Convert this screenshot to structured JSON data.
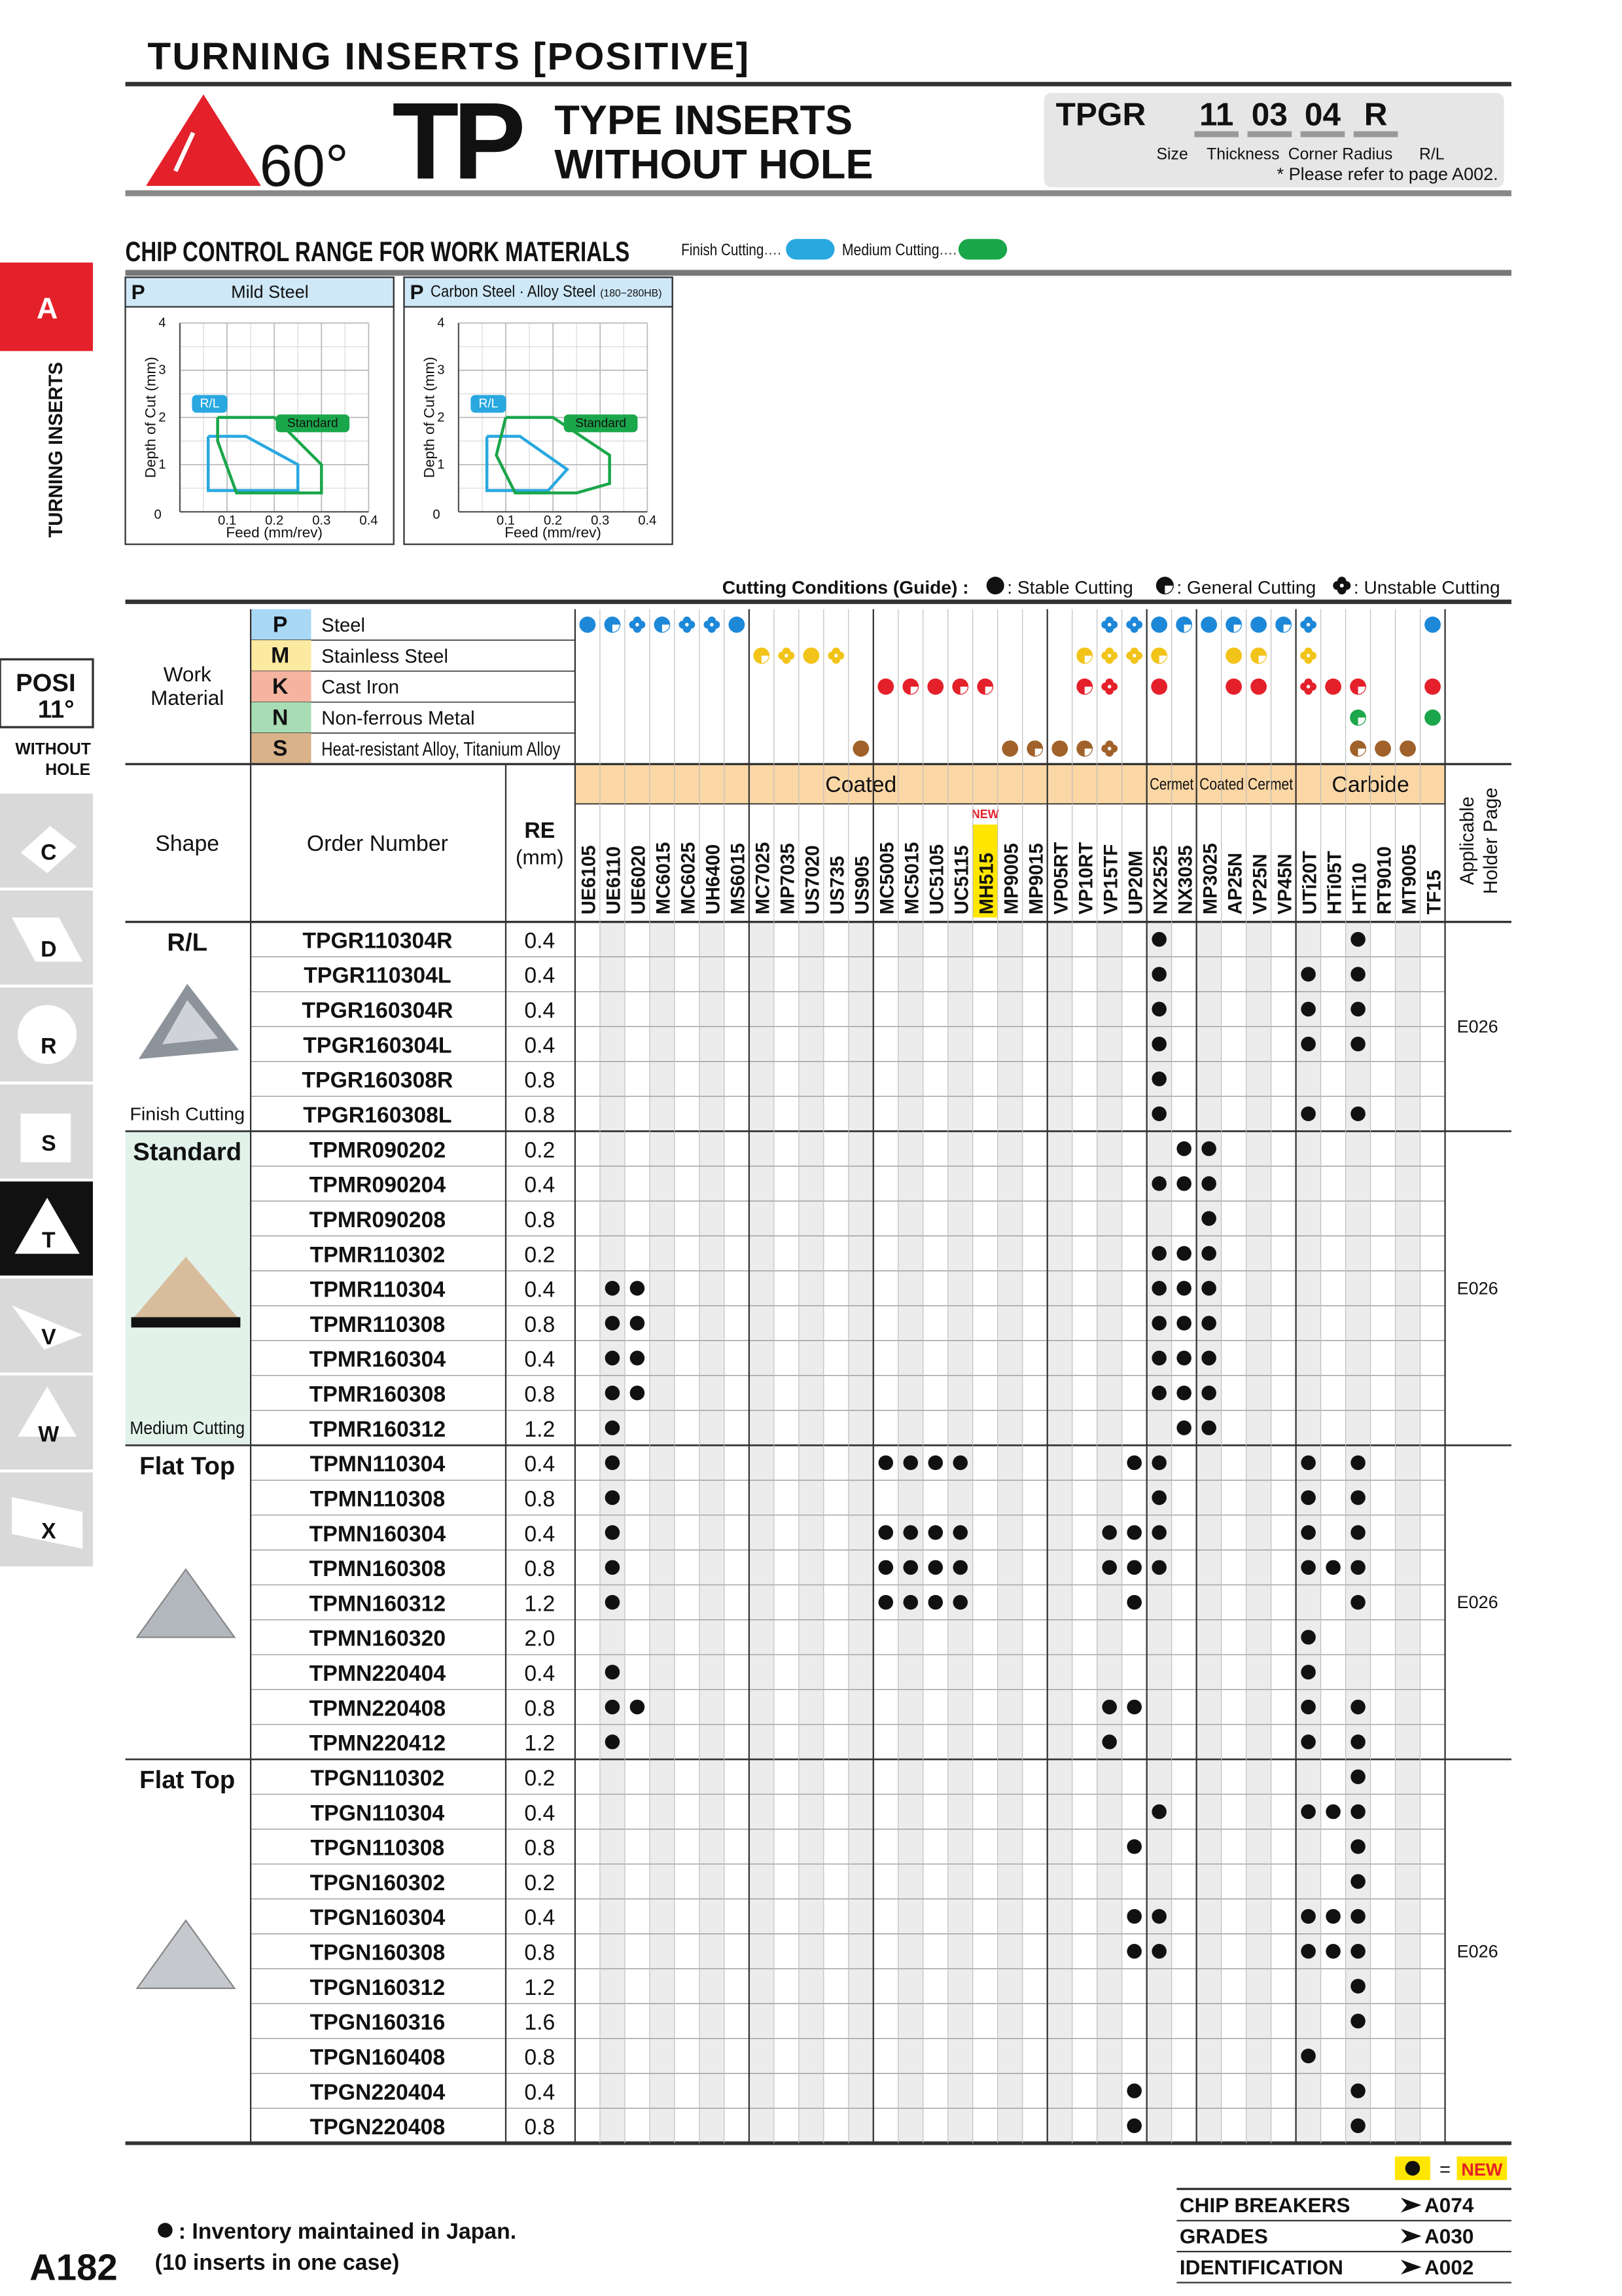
{
  "header": {
    "section": "TURNING INSERTS [POSITIVE]",
    "angle": "60°",
    "type_code": "TP",
    "type_line1": "TYPE INSERTS",
    "type_line2": "WITHOUT HOLE",
    "designation": {
      "prefix": "TPGR",
      "size": "11",
      "thickness": "03",
      "corner_radius": "04",
      "hand": "R",
      "labels": [
        "Size",
        "Thickness",
        "Corner Radius",
        "R/L"
      ],
      "note": "* Please refer to page A002."
    }
  },
  "sidebar": {
    "tab": "A",
    "section": "TURNING INSERTS",
    "posi": "POSI",
    "angle": "11°",
    "without": "WITHOUT",
    "hole": "HOLE",
    "shapes": [
      "C",
      "D",
      "R",
      "S",
      "T",
      "V",
      "W",
      "X"
    ],
    "active_shape": "T"
  },
  "chip_control": {
    "title": "CHIP CONTROL RANGE FOR WORK MATERIALS",
    "legend": [
      {
        "label": "Finish Cutting",
        "color": "#29a8e0"
      },
      {
        "label": "Medium Cutting",
        "color": "#1aa64a"
      }
    ],
    "charts": [
      {
        "code": "P",
        "material": "Mild Steel",
        "ylabel": "Depth of Cut (mm)",
        "xlabel": "Feed (mm/rev)",
        "xlim": [
          0,
          0.4
        ],
        "ylim": [
          0,
          4
        ],
        "xticks": [
          0.1,
          0.2,
          0.3,
          0.4
        ],
        "yticks": [
          0,
          1,
          2,
          3,
          4
        ],
        "regions": [
          {
            "label": "R/L",
            "color": "#29a8e0",
            "feed": [
              0.06,
              0.14,
              0.25,
              0.25,
              0.06,
              0.06
            ],
            "depth": [
              1.6,
              1.6,
              1.0,
              0.45,
              0.45,
              1.6
            ]
          },
          {
            "label": "Standard",
            "color": "#1aa64a",
            "feed": [
              0.08,
              0.2,
              0.3,
              0.3,
              0.12,
              0.08,
              0.08
            ],
            "depth": [
              2.0,
              2.0,
              1.0,
              0.4,
              0.4,
              1.5,
              2.0
            ]
          }
        ]
      },
      {
        "code": "P",
        "material": "Carbon Steel · Alloy Steel",
        "note": "(180−280HB)",
        "ylabel": "Depth of Cut (mm)",
        "xlabel": "Feed (mm/rev)",
        "xlim": [
          0,
          0.4
        ],
        "ylim": [
          0,
          4
        ],
        "xticks": [
          0.1,
          0.2,
          0.3,
          0.4
        ],
        "yticks": [
          0,
          1,
          2,
          3,
          4
        ],
        "regions": [
          {
            "label": "R/L",
            "color": "#29a8e0",
            "feed": [
              0.06,
              0.13,
              0.23,
              0.19,
              0.06,
              0.06
            ],
            "depth": [
              1.6,
              1.6,
              0.9,
              0.45,
              0.45,
              1.6
            ]
          },
          {
            "label": "Standard",
            "color": "#1aa64a",
            "feed": [
              0.1,
              0.2,
              0.32,
              0.32,
              0.25,
              0.12,
              0.08,
              0.1
            ],
            "depth": [
              2.0,
              2.0,
              1.2,
              0.6,
              0.4,
              0.4,
              1.2,
              2.0
            ]
          }
        ]
      }
    ]
  },
  "conditions_legend": {
    "title": "Cutting Conditions (Guide) :",
    "items": [
      {
        "key": "stable",
        "label": ": Stable Cutting"
      },
      {
        "key": "general",
        "label": ": General Cutting"
      },
      {
        "key": "unstable",
        "label": ": Unstable Cutting"
      }
    ]
  },
  "work_material": {
    "label": [
      "Work",
      "Material"
    ],
    "rows": [
      {
        "code": "P",
        "name": "Steel",
        "color": "#1e88d8",
        "bg": "#a9d8f5",
        "conditions": {
          "UE6105": "stable",
          "UE6110": "general",
          "UE6020": "unstable",
          "MC6015": "general",
          "MC6025": "unstable",
          "UH6400": "unstable",
          "MS6015": "stable",
          "VP15TF": "unstable",
          "UP20M": "unstable",
          "NX2525": "stable",
          "NX3035": "general",
          "MP3025": "stable",
          "AP25N": "general",
          "VP25N": "stable",
          "VP45N": "general",
          "UTi20T": "unstable",
          "TF15": "stable"
        }
      },
      {
        "code": "M",
        "name": "Stainless Steel",
        "color": "#f2c318",
        "bg": "#fbeaa0",
        "conditions": {
          "MC7025": "general",
          "MP7035": "unstable",
          "US7020": "stable",
          "US735": "unstable",
          "VP10RT": "general",
          "VP15TF": "unstable",
          "UP20M": "unstable",
          "NX2525": "general",
          "AP25N": "stable",
          "VP25N": "general",
          "UTi20T": "unstable"
        }
      },
      {
        "code": "K",
        "name": "Cast Iron",
        "color": "#e4202a",
        "bg": "#f6b4a0",
        "conditions": {
          "MC5005": "stable",
          "MC5015": "general",
          "UC5105": "stable",
          "UC5115": "general",
          "MH515": "general",
          "VP10RT": "general",
          "VP15TF": "unstable",
          "NX2525": "stable",
          "AP25N": "stable",
          "VP25N": "stable",
          "UTi20T": "unstable",
          "HTi05T": "stable",
          "HTi10": "general",
          "TF15": "stable"
        }
      },
      {
        "code": "N",
        "name": "Non-ferrous Metal",
        "color": "#1aa64a",
        "bg": "#a8dcb4",
        "conditions": {
          "HTi10": "general",
          "TF15": "stable"
        }
      },
      {
        "code": "S",
        "name": "Heat-resistant Alloy, Titanium Alloy",
        "color": "#a0622a",
        "bg": "#d9b28a",
        "conditions": {
          "US905": "stable",
          "MP9005": "stable",
          "MP9015": "general",
          "VP05RT": "stable",
          "VP10RT": "general",
          "VP15TF": "unstable",
          "HTi10": "general",
          "RT9010": "stable",
          "MT9005": "stable"
        }
      }
    ]
  },
  "table": {
    "headers": {
      "shape": "Shape",
      "order_number": "Order Number",
      "re": "RE",
      "re_unit": "(mm)",
      "holder": [
        "Applicable",
        "Holder Page"
      ]
    },
    "grade_groups": [
      {
        "label": "Coated",
        "grades": [
          "UE6105",
          "UE6110",
          "UE6020",
          "MC6015",
          "MC6025",
          "UH6400",
          "MS6015",
          "MC7025",
          "MP7035",
          "US7020",
          "US735",
          "US905",
          "MC5005",
          "MC5015",
          "UC5105",
          "UC5115",
          "MH515",
          "MP9005",
          "MP9015",
          "VP05RT",
          "VP10RT",
          "VP15TF",
          "UP20M"
        ]
      },
      {
        "label": "Cermet",
        "grades": [
          "NX2525",
          "NX3035"
        ]
      },
      {
        "label": "Coated Cermet",
        "grades": [
          "MP3025",
          "AP25N",
          "VP25N",
          "VP45N"
        ]
      },
      {
        "label": "Carbide",
        "grades": [
          "UTi20T",
          "HTi05T",
          "HTi10",
          "RT9010",
          "MT9005",
          "TF15"
        ]
      }
    ],
    "new_grade": "MH515",
    "new_label": "NEW",
    "groups": [
      {
        "shape": "R/L",
        "caption": "Finish Cutting",
        "holder": "E026",
        "rows": [
          {
            "order": "TPGR110304R",
            "re": "0.4",
            "stock": [
              "NX2525",
              "HTi10"
            ]
          },
          {
            "order": "TPGR110304L",
            "re": "0.4",
            "stock": [
              "NX2525",
              "UTi20T",
              "HTi10"
            ]
          },
          {
            "order": "TPGR160304R",
            "re": "0.4",
            "stock": [
              "NX2525",
              "UTi20T",
              "HTi10"
            ]
          },
          {
            "order": "TPGR160304L",
            "re": "0.4",
            "stock": [
              "NX2525",
              "UTi20T",
              "HTi10"
            ]
          },
          {
            "order": "TPGR160308R",
            "re": "0.8",
            "stock": [
              "NX2525"
            ]
          },
          {
            "order": "TPGR160308L",
            "re": "0.8",
            "stock": [
              "NX2525",
              "UTi20T",
              "HTi10"
            ]
          }
        ]
      },
      {
        "shape": "Standard",
        "caption": "Medium Cutting",
        "holder": "E026",
        "rows": [
          {
            "order": "TPMR090202",
            "re": "0.2",
            "stock": [
              "NX3035",
              "MP3025"
            ]
          },
          {
            "order": "TPMR090204",
            "re": "0.4",
            "stock": [
              "NX2525",
              "NX3035",
              "MP3025"
            ]
          },
          {
            "order": "TPMR090208",
            "re": "0.8",
            "stock": [
              "MP3025"
            ]
          },
          {
            "order": "TPMR110302",
            "re": "0.2",
            "stock": [
              "NX2525",
              "NX3035",
              "MP3025"
            ]
          },
          {
            "order": "TPMR110304",
            "re": "0.4",
            "stock": [
              "UE6110",
              "UE6020",
              "NX2525",
              "NX3035",
              "MP3025"
            ]
          },
          {
            "order": "TPMR110308",
            "re": "0.8",
            "stock": [
              "UE6110",
              "UE6020",
              "NX2525",
              "NX3035",
              "MP3025"
            ]
          },
          {
            "order": "TPMR160304",
            "re": "0.4",
            "stock": [
              "UE6110",
              "UE6020",
              "NX2525",
              "NX3035",
              "MP3025"
            ]
          },
          {
            "order": "TPMR160308",
            "re": "0.8",
            "stock": [
              "UE6110",
              "UE6020",
              "NX2525",
              "NX3035",
              "MP3025"
            ]
          },
          {
            "order": "TPMR160312",
            "re": "1.2",
            "stock": [
              "UE6110",
              "NX3035",
              "MP3025"
            ]
          }
        ]
      },
      {
        "shape": "Flat Top",
        "holder": "E026",
        "rows": [
          {
            "order": "TPMN110304",
            "re": "0.4",
            "stock": [
              "UE6110",
              "MC5005",
              "MC5015",
              "UC5105",
              "UC5115",
              "UP20M",
              "NX2525",
              "UTi20T",
              "HTi10"
            ]
          },
          {
            "order": "TPMN110308",
            "re": "0.8",
            "stock": [
              "UE6110",
              "NX2525",
              "UTi20T",
              "HTi10"
            ]
          },
          {
            "order": "TPMN160304",
            "re": "0.4",
            "stock": [
              "UE6110",
              "MC5005",
              "MC5015",
              "UC5105",
              "UC5115",
              "VP15TF",
              "UP20M",
              "NX2525",
              "UTi20T",
              "HTi10"
            ]
          },
          {
            "order": "TPMN160308",
            "re": "0.8",
            "stock": [
              "UE6110",
              "MC5005",
              "MC5015",
              "UC5105",
              "UC5115",
              "VP15TF",
              "UP20M",
              "NX2525",
              "UTi20T",
              "HTi05T",
              "HTi10"
            ]
          },
          {
            "order": "TPMN160312",
            "re": "1.2",
            "stock": [
              "UE6110",
              "MC5005",
              "MC5015",
              "UC5105",
              "UC5115",
              "UP20M",
              "HTi10"
            ]
          },
          {
            "order": "TPMN160320",
            "re": "2.0",
            "stock": [
              "UTi20T"
            ]
          },
          {
            "order": "TPMN220404",
            "re": "0.4",
            "stock": [
              "UE6110",
              "UTi20T"
            ]
          },
          {
            "order": "TPMN220408",
            "re": "0.8",
            "stock": [
              "UE6110",
              "UE6020",
              "VP15TF",
              "UP20M",
              "UTi20T",
              "HTi10"
            ]
          },
          {
            "order": "TPMN220412",
            "re": "1.2",
            "stock": [
              "UE6110",
              "VP15TF",
              "UTi20T",
              "HTi10"
            ]
          }
        ]
      },
      {
        "shape": "Flat Top",
        "holder": "E026",
        "rows": [
          {
            "order": "TPGN110302",
            "re": "0.2",
            "stock": [
              "HTi10"
            ]
          },
          {
            "order": "TPGN110304",
            "re": "0.4",
            "stock": [
              "NX2525",
              "UTi20T",
              "HTi05T",
              "HTi10"
            ]
          },
          {
            "order": "TPGN110308",
            "re": "0.8",
            "stock": [
              "UP20M",
              "HTi10"
            ]
          },
          {
            "order": "TPGN160302",
            "re": "0.2",
            "stock": [
              "HTi10"
            ]
          },
          {
            "order": "TPGN160304",
            "re": "0.4",
            "stock": [
              "UP20M",
              "NX2525",
              "UTi20T",
              "HTi05T",
              "HTi10"
            ]
          },
          {
            "order": "TPGN160308",
            "re": "0.8",
            "stock": [
              "UP20M",
              "NX2525",
              "UTi20T",
              "HTi05T",
              "HTi10"
            ]
          },
          {
            "order": "TPGN160312",
            "re": "1.2",
            "stock": [
              "HTi10"
            ]
          },
          {
            "order": "TPGN160316",
            "re": "1.6",
            "stock": [
              "HTi10"
            ]
          },
          {
            "order": "TPGN160408",
            "re": "0.8",
            "stock": [
              "UTi20T"
            ]
          },
          {
            "order": "TPGN220404",
            "re": "0.4",
            "stock": [
              "UP20M",
              "HTi10"
            ]
          },
          {
            "order": "TPGN220408",
            "re": "0.8",
            "stock": [
              "UP20M",
              "HTi10"
            ]
          }
        ]
      }
    ]
  },
  "footer": {
    "new_legend": {
      "equals": "=",
      "label": "NEW"
    },
    "inventory_note": ": Inventory maintained in Japan.",
    "case_note": "(10 inserts in one case)",
    "page": "A182",
    "references": [
      {
        "label": "CHIP BREAKERS",
        "page": "A074"
      },
      {
        "label": "GRADES",
        "page": "A030"
      },
      {
        "label": "IDENTIFICATION",
        "page": "A002"
      }
    ]
  }
}
